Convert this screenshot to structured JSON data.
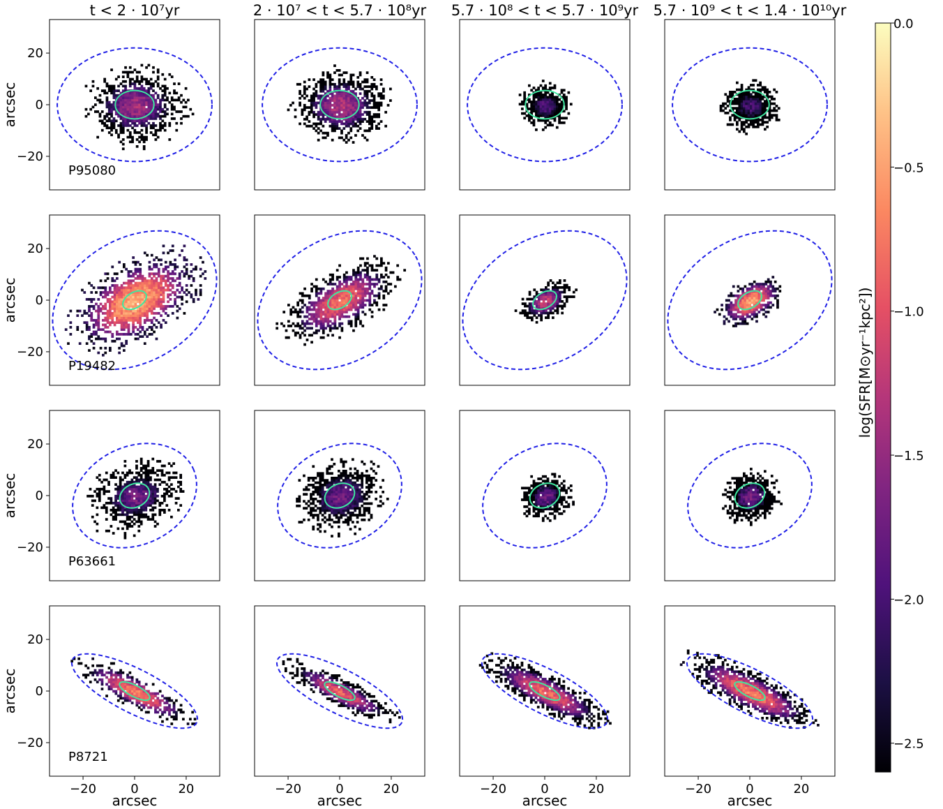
{
  "chart_data": {
    "type": "heatmap",
    "column_titles": [
      "t < 2 · 10⁷yr",
      "2 · 10⁷ < t < 5.7 · 10⁸yr",
      "5.7 · 10⁸ < t < 5.7 · 10⁹yr",
      "5.7 · 10⁹ < t < 1.4 · 10¹⁰yr"
    ],
    "galaxies": [
      "P95080",
      "P19482",
      "P63661",
      "P8721"
    ],
    "xlabel": "arcsec",
    "ylabel": "arcsec",
    "xlim": [
      -33,
      33
    ],
    "ylim": [
      -33,
      33
    ],
    "xticks": [
      -20,
      0,
      20
    ],
    "yticks": [
      -20,
      0,
      20
    ],
    "colorbar": {
      "label": "log(SFR[M⊙yr⁻¹kpc²])",
      "range": [
        -2.6,
        0.0
      ],
      "ticks": [
        "0.0",
        "−0.5",
        "−1.0",
        "−1.5",
        "−2.0",
        "−2.5"
      ],
      "tick_values": [
        0.0,
        -0.5,
        -1.0,
        -1.5,
        -2.0,
        -2.5
      ],
      "colormap": "magma"
    },
    "outer_ellipse_color": "#1f1fe6",
    "inner_ellipse_color": "#3ee8a0",
    "panels": [
      {
        "row": 0,
        "outer": {
          "a": 30,
          "b": 22,
          "angle": 0
        },
        "inner": {
          "a": 7.5,
          "b": 5.5,
          "angle": 0
        },
        "extent": [
          {
            "a": 16,
            "b": 12,
            "angle": 0
          },
          {
            "a": 15,
            "b": 11,
            "angle": 0
          },
          {
            "a": 8,
            "b": 7,
            "angle": 0
          },
          {
            "a": 9,
            "b": 8,
            "angle": 0
          }
        ],
        "peak": [
          -1.2,
          -1.1,
          -1.7,
          -1.8
        ]
      },
      {
        "row": 1,
        "outer": {
          "a": 34,
          "b": 24,
          "angle": 30
        },
        "inner": {
          "a": 5,
          "b": 3,
          "angle": 30
        },
        "extent": [
          {
            "a": 22,
            "b": 12,
            "angle": 30
          },
          {
            "a": 20,
            "b": 9,
            "angle": 30
          },
          {
            "a": 9,
            "b": 5.5,
            "angle": 30
          },
          {
            "a": 11,
            "b": 6,
            "angle": 30
          }
        ],
        "peak": [
          -0.2,
          -0.6,
          -1.0,
          -0.3
        ]
      },
      {
        "row": 2,
        "outer": {
          "a": 25,
          "b": 19,
          "angle": 25
        },
        "inner": {
          "a": 6,
          "b": 4.5,
          "angle": 25
        },
        "extent": [
          {
            "a": 15,
            "b": 11,
            "angle": 20
          },
          {
            "a": 14,
            "b": 11,
            "angle": 20
          },
          {
            "a": 8,
            "b": 7,
            "angle": 20
          },
          {
            "a": 9,
            "b": 8,
            "angle": 20
          }
        ],
        "peak": [
          -1.5,
          -1.5,
          -1.5,
          -1.5
        ]
      },
      {
        "row": 3,
        "outer": {
          "a": 27,
          "b": 8.5,
          "angle": -27
        },
        "inner": {
          "a": 6.5,
          "b": 2.2,
          "angle": -27
        },
        "extent": [
          {
            "a": 20,
            "b": 5,
            "angle": -27
          },
          {
            "a": 19,
            "b": 4.5,
            "angle": -27
          },
          {
            "a": 21,
            "b": 5.5,
            "angle": -27
          },
          {
            "a": 22,
            "b": 6,
            "angle": -27
          }
        ],
        "peak": [
          -0.5,
          -0.7,
          -0.6,
          -0.5
        ]
      }
    ]
  }
}
